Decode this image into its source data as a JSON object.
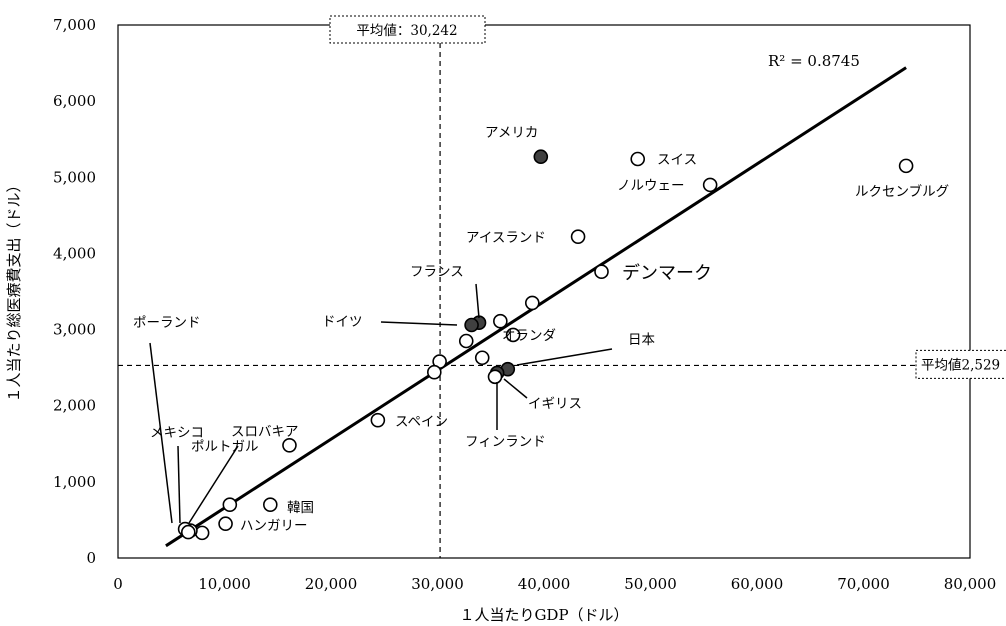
{
  "chart_data": {
    "type": "scatter",
    "xlabel": "１人当たりGDP（ドル）",
    "ylabel": "１人当たり総医療費支出（ドル）",
    "xlim": [
      0,
      80000
    ],
    "ylim": [
      0,
      7000
    ],
    "xticks": [
      0,
      10000,
      20000,
      30000,
      40000,
      50000,
      60000,
      70000,
      80000
    ],
    "yticks": [
      0,
      1000,
      2000,
      3000,
      4000,
      5000,
      6000,
      7000
    ],
    "xtick_labels": [
      "0",
      "10,000",
      "20,000",
      "30,000",
      "40,000",
      "50,000",
      "60,000",
      "70,000",
      "80,000"
    ],
    "ytick_labels": [
      "0",
      "1,000",
      "2,000",
      "3,000",
      "4,000",
      "5,000",
      "6,000",
      "7,000"
    ],
    "r_squared_label": "R² = 0.8745",
    "trendline": {
      "x": [
        4500,
        74000
      ],
      "y": [
        160,
        6440
      ]
    },
    "mean_x": {
      "value": 30242,
      "label": "平均値：30,242"
    },
    "mean_y": {
      "value": 2529,
      "label": "平均値2,529"
    },
    "points": [
      {
        "name": "アメリカ",
        "x": 39700,
        "y": 5270,
        "filled": true
      },
      {
        "name": "スイス",
        "x": 48800,
        "y": 5240,
        "filled": false
      },
      {
        "name": "ノルウェー",
        "x": 55600,
        "y": 4900,
        "filled": false
      },
      {
        "name": "ルクセンブルグ",
        "x": 74000,
        "y": 5150,
        "filled": false
      },
      {
        "name": "アイスランド",
        "x": 43200,
        "y": 4220,
        "filled": false
      },
      {
        "name": "デンマーク",
        "x": 45400,
        "y": 3760,
        "filled": false
      },
      {
        "name": "",
        "x": 38900,
        "y": 3350,
        "filled": false
      },
      {
        "name": "フランス",
        "x": 33900,
        "y": 3090,
        "filled": true
      },
      {
        "name": "ドイツ",
        "x": 33200,
        "y": 3060,
        "filled": true
      },
      {
        "name": "",
        "x": 35900,
        "y": 3110,
        "filled": false
      },
      {
        "name": "オランダ",
        "x": 37100,
        "y": 2930,
        "filled": false
      },
      {
        "name": "",
        "x": 32700,
        "y": 2850,
        "filled": false
      },
      {
        "name": "",
        "x": 34200,
        "y": 2630,
        "filled": false
      },
      {
        "name": "",
        "x": 30200,
        "y": 2580,
        "filled": false
      },
      {
        "name": "",
        "x": 29700,
        "y": 2440,
        "filled": false
      },
      {
        "name": "日本",
        "x": 36600,
        "y": 2480,
        "filled": true
      },
      {
        "name": "イギリス",
        "x": 35600,
        "y": 2430,
        "filled": true
      },
      {
        "name": "フィンランド",
        "x": 35400,
        "y": 2380,
        "filled": false
      },
      {
        "name": "スペイン",
        "x": 24400,
        "y": 1810,
        "filled": false
      },
      {
        "name": "ポルトガル",
        "x": 16100,
        "y": 1480,
        "filled": false
      },
      {
        "name": "韓国",
        "x": 14300,
        "y": 700,
        "filled": false
      },
      {
        "name": "",
        "x": 10500,
        "y": 700,
        "filled": false
      },
      {
        "name": "ハンガリー",
        "x": 10100,
        "y": 450,
        "filled": false
      },
      {
        "name": "",
        "x": 7900,
        "y": 330,
        "filled": false
      },
      {
        "name": "スロバキア",
        "x": 6800,
        "y": 360,
        "filled": false
      },
      {
        "name": "ポーランド",
        "x": 6300,
        "y": 380,
        "filled": false
      },
      {
        "name": "メキシコ",
        "x": 6600,
        "y": 340,
        "filled": false
      }
    ]
  }
}
